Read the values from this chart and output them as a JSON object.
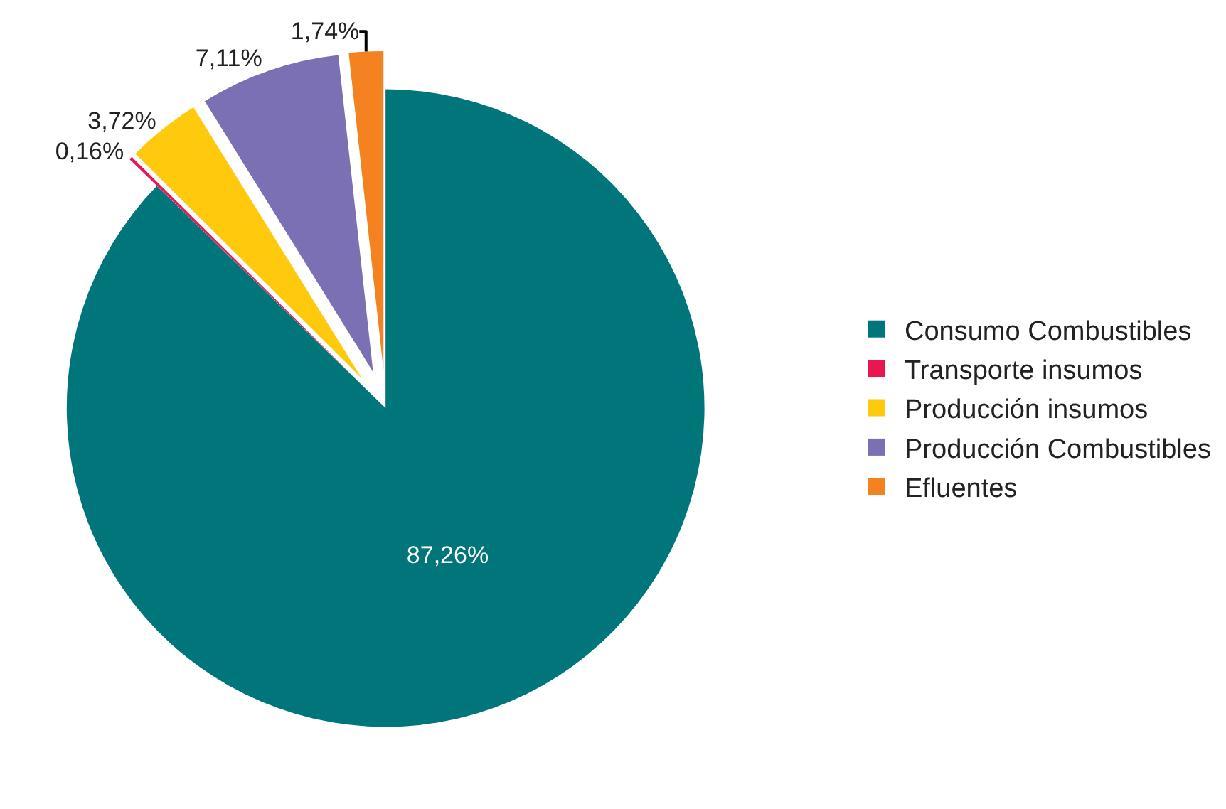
{
  "chart_data": {
    "type": "pie",
    "categories": [
      "Consumo Combustibles",
      "Transporte insumos",
      "Producción insumos",
      "Producción Combustibles",
      "Efluentes"
    ],
    "values": [
      87.26,
      0.16,
      3.72,
      7.11,
      1.74
    ],
    "value_labels": [
      "87,26%",
      "0,16%",
      "3,72%",
      "7,11%",
      "1,74%"
    ],
    "colors": [
      "#00767a",
      "#e8174f",
      "#ffc90e",
      "#7b70b4",
      "#f58220"
    ],
    "legend": "right"
  }
}
